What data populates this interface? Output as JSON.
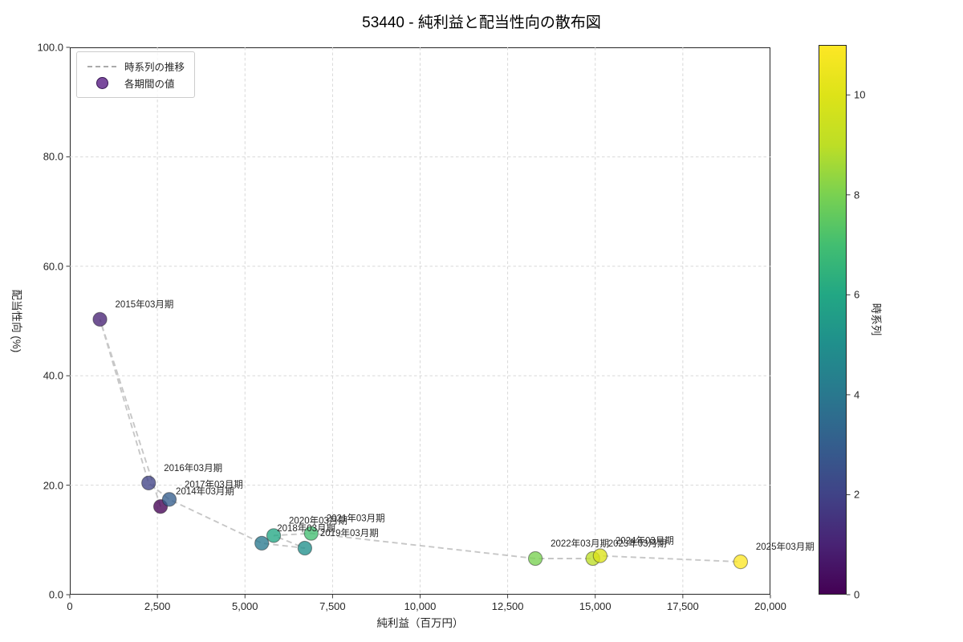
{
  "title": "53440 - 純利益と配当性向の散布図",
  "legend": {
    "line_label": "時系列の推移",
    "marker_label": "各期間の値",
    "marker_color": "#7a4a9d"
  },
  "axes": {
    "xlabel": "純利益（百万円）",
    "ylabel": "配当性向 (%)",
    "xticks": [
      0,
      2500,
      5000,
      7500,
      10000,
      12500,
      15000,
      17500,
      20000
    ],
    "xtick_labels": [
      "0",
      "2,500",
      "5,000",
      "7,500",
      "10,000",
      "12,500",
      "15,000",
      "17,500",
      "20,000"
    ],
    "yticks": [
      0,
      20,
      40,
      60,
      80,
      100
    ],
    "ytick_labels": [
      "0.0",
      "20.0",
      "40.0",
      "60.0",
      "80.0",
      "100.0"
    ]
  },
  "colorbar": {
    "label": "時系列",
    "min": 0,
    "max": 11,
    "ticks": [
      0,
      2,
      4,
      6,
      8,
      10
    ],
    "tick_labels": [
      "0",
      "2",
      "4",
      "6",
      "8",
      "10"
    ],
    "colors": [
      "#440154",
      "#482374",
      "#404387",
      "#345e8d",
      "#29788e",
      "#208f8c",
      "#22a784",
      "#42be71",
      "#79d151",
      "#bdde26",
      "#dde318",
      "#fde725"
    ]
  },
  "style": {
    "grid_color": "#d4d4d4",
    "trajectory_color": "#bdbdbd",
    "point_edge_color": "#1f1f1f",
    "spine_color": "#262626"
  },
  "chart_data": {
    "type": "scatter",
    "title": "53440 - 純利益と配当性向の散布図",
    "xlabel": "純利益（百万円）",
    "ylabel": "配当性向 (%)",
    "xlim": [
      0,
      20000
    ],
    "ylim": [
      0,
      100
    ],
    "grid": true,
    "legend_position": "upper left",
    "colorbar_label": "時系列",
    "colorbar_range": [
      0,
      11
    ],
    "points": [
      {
        "label": "2014年03月期",
        "t": 0,
        "x": 2590,
        "y": 16.1,
        "color": "#440154"
      },
      {
        "label": "2015年03月期",
        "t": 1,
        "x": 860,
        "y": 50.3,
        "color": "#482374"
      },
      {
        "label": "2016年03月期",
        "t": 2,
        "x": 2250,
        "y": 20.4,
        "color": "#404387"
      },
      {
        "label": "2017年03月期",
        "t": 3,
        "x": 2840,
        "y": 17.4,
        "color": "#345e8d"
      },
      {
        "label": "2018年03月期",
        "t": 4,
        "x": 5480,
        "y": 9.4,
        "color": "#29788e"
      },
      {
        "label": "2019年03月期",
        "t": 5,
        "x": 6710,
        "y": 8.5,
        "color": "#208f8c"
      },
      {
        "label": "2020年03月期",
        "t": 6,
        "x": 5820,
        "y": 10.8,
        "color": "#22a784"
      },
      {
        "label": "2021年03月期",
        "t": 7,
        "x": 6890,
        "y": 11.2,
        "color": "#42be71"
      },
      {
        "label": "2022年03月期",
        "t": 8,
        "x": 13290,
        "y": 6.6,
        "color": "#79d151"
      },
      {
        "label": "2023年03月期",
        "t": 9,
        "x": 14930,
        "y": 6.6,
        "color": "#bdde26"
      },
      {
        "label": "2024年03月期",
        "t": 10,
        "x": 15140,
        "y": 7.1,
        "color": "#dde318"
      },
      {
        "label": "2025年03月期",
        "t": 11,
        "x": 19150,
        "y": 6.0,
        "color": "#fde725"
      }
    ]
  }
}
